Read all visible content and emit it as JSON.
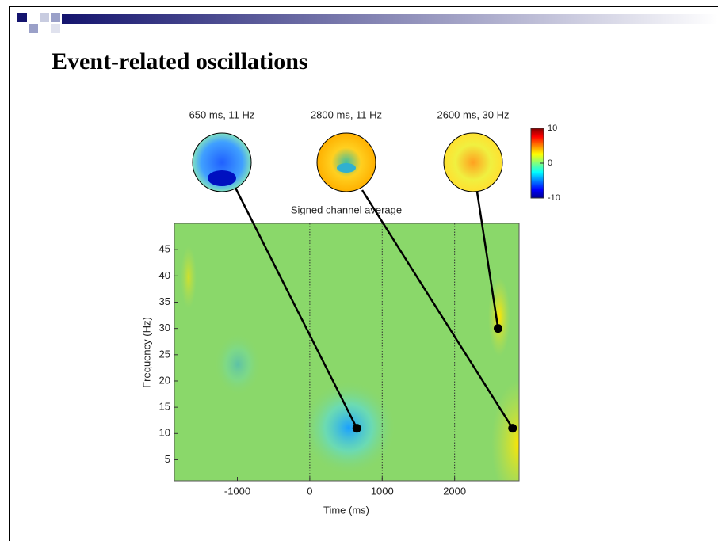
{
  "title": "Event-related oscillations",
  "chart_data": {
    "type": "scatter",
    "title": "Signed channel average",
    "xlabel": "Time (ms)",
    "ylabel": "Frequency (Hz)",
    "xlim": [
      -1870,
      2890
    ],
    "ylim": [
      1,
      50
    ],
    "xticks": [
      -1000,
      0,
      1000,
      2000
    ],
    "yticks": [
      5,
      10,
      15,
      20,
      25,
      30,
      35,
      40,
      45
    ],
    "vlines": [
      0,
      1000,
      2000
    ],
    "x": [
      650,
      2800,
      2600
    ],
    "values": [
      11,
      11,
      30
    ],
    "point_labels": [
      "650 ms, 11 Hz",
      "2800 ms, 11 Hz",
      "2600 ms, 30 Hz"
    ],
    "colorbar": {
      "lim": [
        -10,
        10
      ],
      "ticks": [
        -10,
        0,
        10
      ]
    }
  }
}
